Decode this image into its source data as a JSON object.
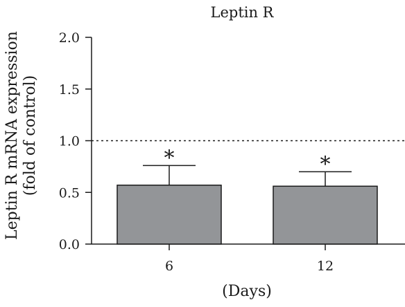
{
  "chart_data": {
    "type": "bar",
    "title": "Leptin R",
    "xlabel": "(Days)",
    "ylabel_lines": [
      "Leptin R mRNA expression",
      "(fold of control)"
    ],
    "categories": [
      "6",
      "12"
    ],
    "values": [
      0.57,
      0.56
    ],
    "error_upper": [
      0.76,
      0.7
    ],
    "annotations": [
      "*",
      "*"
    ],
    "ylim": [
      0.0,
      2.0
    ],
    "yticks": [
      "0.0",
      "0.5",
      "1.0",
      "1.5",
      "2.0"
    ],
    "reference_line": 1.0,
    "grid": false,
    "bar_color": "#939598"
  }
}
